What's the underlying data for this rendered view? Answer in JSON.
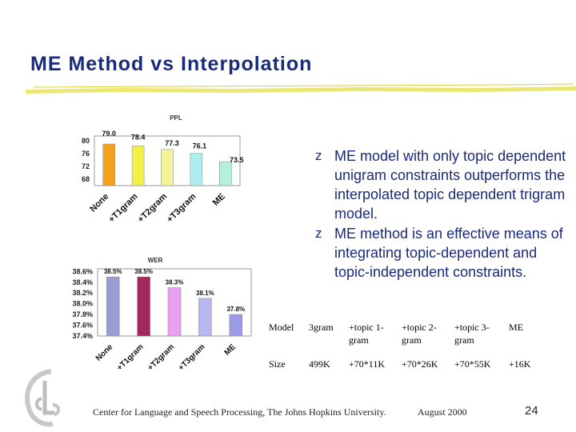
{
  "slide": {
    "title": "ME Method vs Interpolation",
    "footer": "Center for Language and Speech Processing, The Johns Hopkins University.",
    "date": "August 2000",
    "page_number": "24"
  },
  "bullets": [
    "ME model with only topic dependent unigram constraints outperforms the interpolated topic dependent trigram model.",
    "ME method is an effective means of integrating topic-dependent and topic-independent constraints."
  ],
  "bullet_glyph": "z",
  "table": {
    "rows": [
      [
        "Model",
        "3gram",
        "+topic 1-gram",
        "+topic 2-gram",
        "+topic 3-gram",
        "ME"
      ],
      [
        "Size",
        "499K",
        "+70*11K",
        "+70*26K",
        "+70*55K",
        "+16K"
      ]
    ]
  },
  "chart_data": [
    {
      "type": "bar",
      "title": "PPL",
      "categories": [
        "None",
        "+T1gram",
        "+T2gram",
        "+T3gram",
        "ME"
      ],
      "values": [
        79.0,
        78.4,
        77.3,
        76.1,
        73.5
      ],
      "data_labels": [
        "79.0",
        "78.4",
        "77.3",
        "76.1",
        "73.5"
      ],
      "yticks": [
        "80",
        "76",
        "72",
        "68"
      ],
      "ylim": [
        66,
        81.5
      ],
      "colors": [
        "#f4a21c",
        "#f4f04a",
        "#f3f39a",
        "#aeeeee",
        "#b4f0d8"
      ]
    },
    {
      "type": "bar",
      "title": "WER",
      "categories": [
        "None",
        "+T1gram",
        "+T2gram",
        "+T3gram",
        "ME"
      ],
      "values": [
        38.5,
        38.5,
        38.3,
        38.1,
        37.8
      ],
      "data_labels": [
        "38.5%",
        "38.5%",
        "38.3%",
        "38.1%",
        "37.8%"
      ],
      "yticks": [
        "38.6%",
        "38.4%",
        "38.2%",
        "38.0%",
        "37.8%",
        "37.6%",
        "37.4%"
      ],
      "ylim": [
        37.4,
        38.65
      ],
      "colors": [
        "#9b9bd4",
        "#a02a5a",
        "#eaa0f0",
        "#b8b8f0",
        "#9a9ae8"
      ]
    }
  ]
}
